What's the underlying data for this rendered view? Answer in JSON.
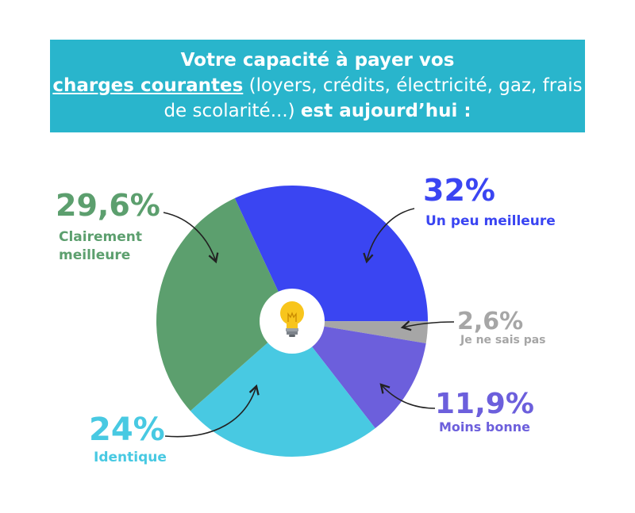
{
  "chart_data": {
    "type": "pie",
    "title_parts": [
      "Votre capacité à payer vos",
      "charges courantes",
      "(loyers, crédits, électricité, gaz, frais de scolarité...)",
      "est aujourd’hui :"
    ],
    "categories": [
      "Un peu meilleure",
      "Je ne sais pas",
      "Moins bonne",
      "Identique",
      "Clairement meilleure"
    ],
    "values": [
      32,
      2.6,
      11.9,
      24,
      29.6
    ],
    "value_labels": [
      "32%",
      "2,6%",
      "11,9%",
      "24%",
      "29,6%"
    ],
    "colors": [
      "#3a45f2",
      "#a6a6a6",
      "#6c5fdc",
      "#48c9e2",
      "#5c9f6e"
    ]
  }
}
